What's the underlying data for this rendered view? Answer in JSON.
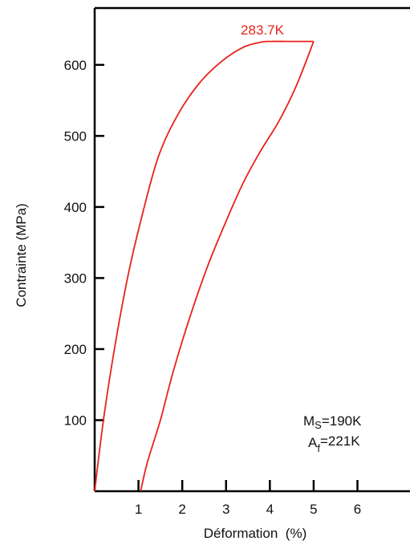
{
  "chart_data": {
    "type": "line",
    "title": "",
    "xlabel": "Déformation  (%)",
    "ylabel": "Contrainte (MPa)",
    "xlim": [
      0,
      7.2
    ],
    "ylim": [
      0,
      680
    ],
    "x_ticks": [
      1,
      2,
      3,
      4,
      5,
      6
    ],
    "y_ticks": [
      100,
      200,
      300,
      400,
      500,
      600
    ],
    "grid": false,
    "series_color": "#e8221b",
    "curve_label": "283.7K",
    "series": [
      {
        "segment": "loading",
        "x": [
          0.0,
          0.2,
          0.45,
          0.75,
          1.05,
          1.45,
          1.9,
          2.4,
          2.9,
          3.4,
          3.8,
          4.0,
          4.4,
          4.8,
          5.0
        ],
        "y": [
          0,
          100,
          200,
          300,
          380,
          470,
          530,
          575,
          605,
          625,
          632,
          633,
          633,
          633,
          633
        ]
      },
      {
        "segment": "unloading",
        "x": [
          5.0,
          4.6,
          4.2,
          3.8,
          3.4,
          3.0,
          2.6,
          2.2,
          1.8,
          1.5,
          1.2,
          1.05
        ],
        "y": [
          633,
          570,
          520,
          480,
          435,
          380,
          320,
          250,
          170,
          100,
          40,
          0
        ]
      }
    ],
    "annotations": {
      "ms_main": "M",
      "ms_sub": "S",
      "ms_value": "=190K",
      "af_main": "A",
      "af_sub": "f",
      "af_value": "=221K"
    }
  }
}
